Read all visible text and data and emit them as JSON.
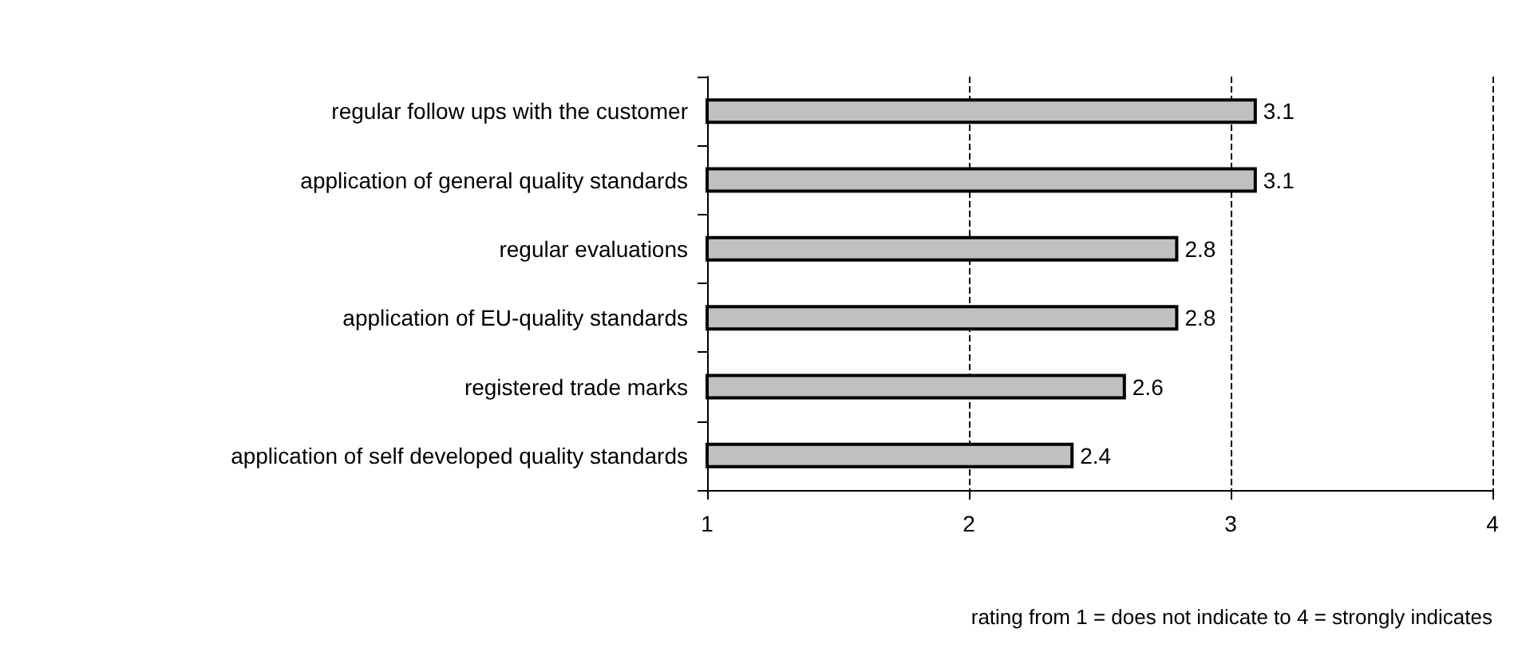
{
  "chart_data": {
    "type": "bar",
    "orientation": "horizontal",
    "xlabel": "rating from 1 = does not indicate to 4 = strongly indicates",
    "categories": [
      "regular follow ups with the customer",
      "application of general quality standards",
      "regular evaluations",
      "application of EU-quality standards",
      "registered trade marks",
      "application of self developed quality standards"
    ],
    "values": [
      3.1,
      3.1,
      2.8,
      2.8,
      2.6,
      2.4
    ],
    "color": "#c0c0c0",
    "xlim": [
      1,
      4
    ],
    "xticks": [
      1,
      2,
      3,
      4
    ],
    "grid": "x",
    "data_labels": true
  }
}
